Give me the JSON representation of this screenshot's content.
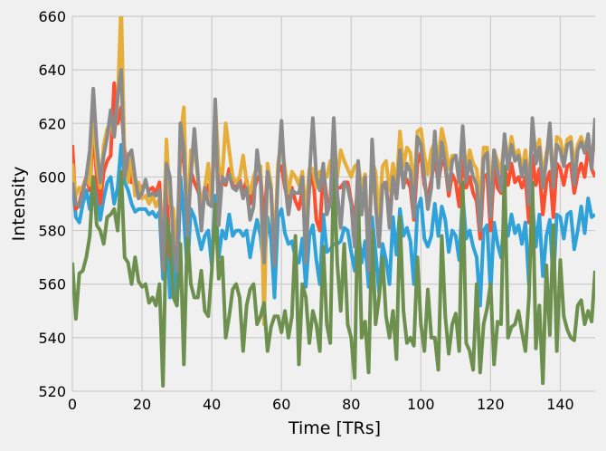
{
  "chart_data": {
    "type": "line",
    "title": "",
    "xlabel": "Time [TRs]",
    "ylabel": "Intensity",
    "xlim": [
      0,
      150
    ],
    "ylim": [
      520,
      660
    ],
    "xticks": [
      0,
      20,
      40,
      60,
      80,
      100,
      120,
      140
    ],
    "yticks": [
      520,
      540,
      560,
      580,
      600,
      620,
      640,
      660
    ],
    "grid": true,
    "legend": "none",
    "series": [
      {
        "color": "#30a2da",
        "values": [
          600,
          585,
          583,
          590,
          595,
          588,
          600,
          595,
          584,
          592,
          598,
          600,
          590,
          596,
          612,
          598,
          595,
          590,
          587,
          588,
          588,
          588,
          586,
          587,
          585,
          587,
          562,
          585,
          555,
          574,
          552,
          600,
          585,
          565,
          588,
          585,
          579,
          573,
          578,
          580,
          567,
          593,
          570,
          580,
          577,
          586,
          578,
          580,
          580,
          578,
          580,
          570,
          578,
          584,
          578,
          565,
          585,
          577,
          555,
          585,
          588,
          579,
          575,
          576,
          570,
          568,
          577,
          559,
          578,
          582,
          569,
          560,
          586,
          572,
          573,
          575,
          575,
          576,
          581,
          580,
          572,
          565,
          580,
          568,
          576,
          559,
          585,
          572,
          557,
          575,
          569,
          560,
          585,
          571,
          588,
          578,
          581,
          576,
          560,
          588,
          592,
          577,
          574,
          578,
          590,
          578,
          589,
          584,
          572,
          580,
          578,
          569,
          593,
          577,
          580,
          574,
          570,
          552,
          580,
          582,
          557,
          583,
          575,
          570,
          585,
          578,
          586,
          579,
          582,
          575,
          583,
          560,
          590,
          574,
          586,
          563,
          578,
          584,
          560,
          586,
          585,
          577,
          586,
          587,
          573,
          580,
          589,
          579,
          592,
          585,
          586
        ]
      },
      {
        "color": "#fc4f30",
        "values": [
          612,
          588,
          590,
          596,
          600,
          595,
          618,
          600,
          590,
          602,
          606,
          608,
          635,
          620,
          626,
          610,
          605,
          598,
          598,
          597,
          596,
          597,
          595,
          596,
          594,
          598,
          568,
          598,
          570,
          580,
          565,
          612,
          605,
          590,
          602,
          598,
          595,
          591,
          594,
          597,
          591,
          620,
          594,
          598,
          597,
          603,
          597,
          596,
          599,
          594,
          599,
          590,
          595,
          599,
          601,
          582,
          602,
          596,
          570,
          602,
          604,
          596,
          590,
          596,
          591,
          588,
          595,
          577,
          596,
          602,
          584,
          580,
          603,
          592,
          590,
          595,
          596,
          596,
          598,
          598,
          591,
          584,
          598,
          586,
          596,
          576,
          601,
          593,
          579,
          598,
          596,
          585,
          601,
          592,
          608,
          597,
          599,
          596,
          584,
          605,
          609,
          597,
          592,
          599,
          607,
          598,
          606,
          604,
          593,
          601,
          598,
          589,
          608,
          596,
          600,
          594,
          591,
          577,
          600,
          601,
          580,
          603,
          596,
          594,
          604,
          597,
          605,
          598,
          600,
          596,
          600,
          583,
          608,
          597,
          603,
          586,
          598,
          602,
          585,
          605,
          603,
          597,
          604,
          605,
          594,
          601,
          605,
          600,
          611,
          603,
          600
        ]
      },
      {
        "color": "#e5ae38",
        "values": [
          605,
          593,
          596,
          595,
          600,
          597,
          625,
          605,
          596,
          612,
          618,
          620,
          615,
          628,
          665,
          605,
          598,
          608,
          593,
          598,
          592,
          593,
          590,
          593,
          589,
          592,
          570,
          614,
          590,
          588,
          570,
          615,
          626,
          580,
          610,
          610,
          600,
          590,
          596,
          605,
          590,
          628,
          604,
          600,
          620,
          610,
          600,
          598,
          600,
          608,
          598,
          594,
          600,
          604,
          604,
          545,
          605,
          597,
          572,
          605,
          613,
          603,
          594,
          602,
          600,
          597,
          602,
          586,
          603,
          603,
          596,
          602,
          600,
          600,
          606,
          601,
          600,
          610,
          606,
          603,
          600,
          604,
          605,
          596,
          601,
          571,
          606,
          602,
          585,
          604,
          606,
          595,
          605,
          597,
          617,
          604,
          611,
          609,
          595,
          617,
          618,
          608,
          601,
          610,
          613,
          607,
          618,
          612,
          603,
          608,
          608,
          598,
          616,
          602,
          610,
          605,
          603,
          590,
          611,
          611,
          594,
          610,
          606,
          602,
          614,
          607,
          615,
          608,
          610,
          603,
          610,
          596,
          619,
          609,
          614,
          600,
          609,
          614,
          598,
          615,
          614,
          607,
          614,
          615,
          605,
          612,
          615,
          611,
          612,
          607,
          613
        ]
      },
      {
        "color": "#6d904f",
        "values": [
          568,
          547,
          564,
          565,
          570,
          578,
          600,
          582,
          580,
          575,
          585,
          586,
          588,
          580,
          602,
          570,
          568,
          560,
          570,
          561,
          559,
          560,
          553,
          555,
          552,
          560,
          522,
          585,
          577,
          555,
          552,
          575,
          530,
          580,
          560,
          555,
          555,
          565,
          550,
          548,
          565,
          590,
          562,
          570,
          540,
          548,
          558,
          560,
          555,
          535,
          552,
          558,
          560,
          545,
          548,
          553,
          535,
          544,
          548,
          548,
          542,
          550,
          540,
          548,
          578,
          530,
          560,
          555,
          538,
          550,
          545,
          535,
          574,
          545,
          538,
          605,
          568,
          550,
          575,
          545,
          540,
          525,
          595,
          540,
          546,
          527,
          580,
          545,
          555,
          570,
          548,
          540,
          550,
          532,
          585,
          550,
          538,
          540,
          537,
          570,
          545,
          535,
          558,
          540,
          540,
          528,
          578,
          548,
          534,
          545,
          549,
          535,
          598,
          538,
          535,
          528,
          560,
          527,
          545,
          551,
          560,
          530,
          546,
          545,
          604,
          540,
          544,
          545,
          550,
          542,
          535,
          555,
          598,
          536,
          552,
          523,
          567,
          541,
          582,
          535,
          569,
          548,
          543,
          540,
          539,
          552,
          554,
          545,
          550,
          546,
          565
        ]
      },
      {
        "color": "#8b8b8b",
        "values": [
          598,
          590,
          589,
          594,
          600,
          610,
          633,
          612,
          598,
          608,
          615,
          625,
          615,
          630,
          640,
          600,
          608,
          610,
          600,
          592,
          594,
          599,
          593,
          594,
          593,
          595,
          565,
          605,
          600,
          575,
          565,
          620,
          610,
          578,
          600,
          618,
          601,
          580,
          596,
          590,
          589,
          629,
          582,
          600,
          598,
          601,
          596,
          595,
          598,
          592,
          596,
          584,
          589,
          610,
          599,
          568,
          602,
          595,
          567,
          600,
          621,
          598,
          586,
          595,
          594,
          594,
          600,
          568,
          600,
          622,
          600,
          595,
          605,
          586,
          590,
          622,
          594,
          581,
          598,
          596,
          590,
          574,
          606,
          586,
          600,
          565,
          614,
          590,
          574,
          597,
          598,
          581,
          600,
          592,
          610,
          596,
          605,
          602,
          585,
          615,
          612,
          600,
          588,
          596,
          617,
          596,
          613,
          605,
          595,
          606,
          608,
          598,
          619,
          598,
          606,
          600,
          597,
          580,
          607,
          609,
          585,
          610,
          602,
          595,
          616,
          603,
          612,
          606,
          608,
          600,
          606,
          590,
          622,
          605,
          611,
          596,
          606,
          620,
          596,
          612,
          610,
          604,
          612,
          613,
          597,
          610,
          613,
          609,
          616,
          603,
          622
        ]
      }
    ]
  }
}
